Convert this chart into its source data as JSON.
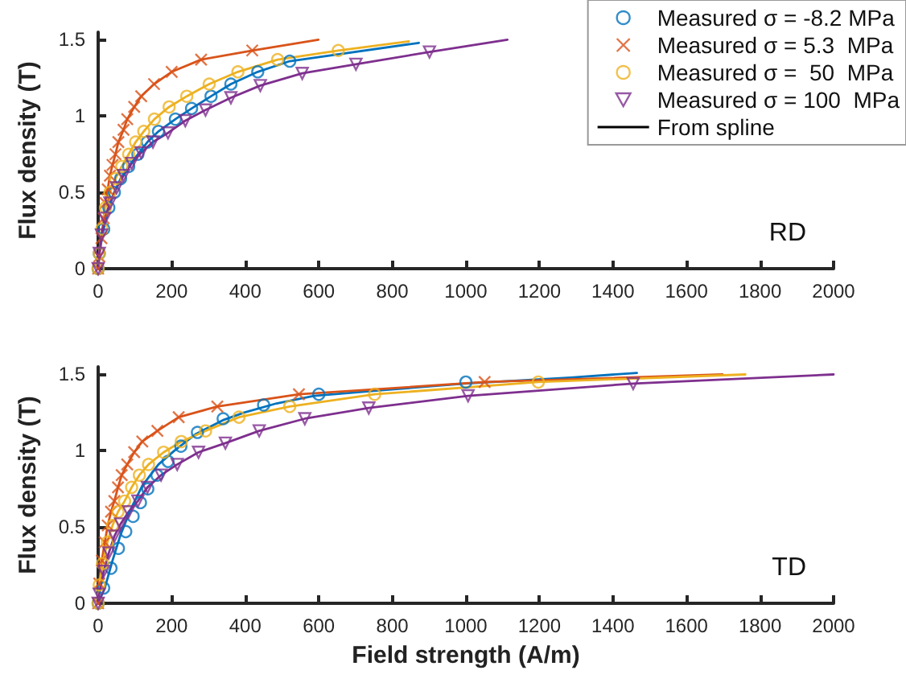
{
  "chart_data": [
    {
      "type": "scatter",
      "ylabel": "Flux density (T)",
      "xlim": [
        0,
        2000
      ],
      "xticks": [
        0,
        200,
        400,
        600,
        800,
        1000,
        1200,
        1400,
        1600,
        1800,
        2000
      ],
      "ylim": [
        0,
        1.55
      ],
      "yticks": [
        0,
        0.5,
        1,
        1.5
      ],
      "grid": false,
      "legend": "top right",
      "annotations": [
        "RD"
      ],
      "series": [
        {
          "name": "Measured σ = -8.2 MPa",
          "color": "#0072bd",
          "marker": "circle",
          "x": [
            0,
            3,
            15,
            29,
            44,
            61,
            83,
            108,
            134,
            164,
            210,
            254,
            307,
            361,
            434,
            521
          ],
          "values": [
            0,
            0.1,
            0.26,
            0.4,
            0.5,
            0.59,
            0.67,
            0.75,
            0.83,
            0.9,
            0.98,
            1.05,
            1.13,
            1.21,
            1.29,
            1.36
          ]
        },
        {
          "name": "Measured σ = 5.3  MPa",
          "color": "#d95319",
          "marker": "cross",
          "x": [
            0,
            3,
            9,
            15,
            20,
            26,
            32,
            39,
            47,
            55,
            69,
            79,
            98,
            117,
            152,
            200,
            280,
            419
          ],
          "values": [
            0,
            0.08,
            0.2,
            0.33,
            0.43,
            0.52,
            0.61,
            0.68,
            0.75,
            0.83,
            0.91,
            0.98,
            1.06,
            1.13,
            1.21,
            1.29,
            1.37,
            1.43
          ]
        },
        {
          "name": "Measured σ =  50  MPa",
          "color": "#edb120",
          "marker": "circle",
          "x": [
            0,
            3,
            10,
            20,
            32,
            47,
            64,
            83,
            102,
            124,
            153,
            193,
            241,
            302,
            380,
            488,
            653
          ],
          "values": [
            0,
            0.1,
            0.26,
            0.4,
            0.5,
            0.59,
            0.67,
            0.75,
            0.83,
            0.9,
            0.98,
            1.06,
            1.13,
            1.21,
            1.29,
            1.37,
            1.43
          ]
        },
        {
          "name": "Measured σ = 100  MPa",
          "color": "#7e2f8e",
          "marker": "triangle",
          "x": [
            0,
            3,
            9,
            18,
            32,
            50,
            69,
            91,
            117,
            149,
            190,
            237,
            292,
            361,
            441,
            555,
            701,
            901
          ],
          "values": [
            0,
            0.1,
            0.22,
            0.33,
            0.43,
            0.53,
            0.61,
            0.69,
            0.76,
            0.83,
            0.89,
            0.97,
            1.04,
            1.12,
            1.2,
            1.28,
            1.34,
            1.42
          ]
        },
        {
          "type": "line",
          "color": "#0072bd",
          "x": [
            0,
            3,
            15,
            29,
            44,
            61,
            83,
            108,
            134,
            164,
            210,
            254,
            307,
            361,
            434,
            521,
            872
          ],
          "values": [
            0,
            0.1,
            0.26,
            0.4,
            0.5,
            0.59,
            0.67,
            0.75,
            0.83,
            0.9,
            0.98,
            1.05,
            1.13,
            1.21,
            1.29,
            1.36,
            1.48
          ]
        },
        {
          "type": "line",
          "color": "#d95319",
          "x": [
            0,
            3,
            9,
            15,
            20,
            26,
            32,
            39,
            47,
            55,
            69,
            79,
            98,
            117,
            152,
            200,
            280,
            419,
            599
          ],
          "values": [
            0,
            0.08,
            0.2,
            0.33,
            0.43,
            0.52,
            0.61,
            0.68,
            0.75,
            0.83,
            0.91,
            0.98,
            1.06,
            1.13,
            1.21,
            1.29,
            1.37,
            1.43,
            1.5
          ]
        },
        {
          "type": "line",
          "color": "#edb120",
          "x": [
            0,
            3,
            10,
            20,
            32,
            47,
            64,
            83,
            102,
            124,
            153,
            193,
            241,
            302,
            380,
            488,
            653,
            845
          ],
          "values": [
            0,
            0.1,
            0.26,
            0.4,
            0.5,
            0.59,
            0.67,
            0.75,
            0.83,
            0.9,
            0.98,
            1.06,
            1.13,
            1.21,
            1.29,
            1.37,
            1.43,
            1.49
          ]
        },
        {
          "type": "line",
          "color": "#7e2f8e",
          "x": [
            0,
            3,
            9,
            18,
            32,
            50,
            69,
            91,
            117,
            149,
            190,
            237,
            292,
            361,
            441,
            555,
            701,
            901,
            1113
          ],
          "values": [
            0,
            0.1,
            0.22,
            0.33,
            0.43,
            0.53,
            0.61,
            0.69,
            0.76,
            0.83,
            0.89,
            0.97,
            1.04,
            1.12,
            1.2,
            1.28,
            1.34,
            1.42,
            1.5
          ]
        },
        {
          "type": "line",
          "name": "From spline",
          "color": "#000000"
        }
      ]
    },
    {
      "type": "scatter",
      "xlabel": "Field strength (A/m)",
      "ylabel": "Flux density (T)",
      "xlim": [
        0,
        2000
      ],
      "xticks": [
        0,
        200,
        400,
        600,
        800,
        1000,
        1200,
        1400,
        1600,
        1800,
        2000
      ],
      "ylim": [
        0,
        1.55
      ],
      "yticks": [
        0,
        0.5,
        1,
        1.5
      ],
      "grid": false,
      "annotations": [
        "TD"
      ],
      "series": [
        {
          "color": "#0072bd",
          "marker": "circle",
          "x": [
            0,
            15,
            35,
            55,
            75,
            95,
            115,
            135,
            160,
            190,
            225,
            270,
            340,
            450,
            600,
            1000
          ],
          "values": [
            0,
            0.1,
            0.23,
            0.36,
            0.47,
            0.57,
            0.66,
            0.75,
            0.84,
            0.93,
            1.03,
            1.12,
            1.21,
            1.3,
            1.37,
            1.45
          ]
        },
        {
          "color": "#d95319",
          "marker": "cross",
          "x": [
            0,
            3,
            10,
            18,
            26,
            35,
            44,
            54,
            64,
            79,
            98,
            120,
            161,
            219,
            324,
            546,
            1051
          ],
          "values": [
            0,
            0.13,
            0.28,
            0.4,
            0.51,
            0.6,
            0.67,
            0.76,
            0.84,
            0.91,
            0.99,
            1.06,
            1.13,
            1.22,
            1.29,
            1.37,
            1.45
          ]
        },
        {
          "color": "#edb120",
          "marker": "circle",
          "x": [
            0,
            3,
            12,
            25,
            39,
            54,
            72,
            91,
            112,
            137,
            178,
            226,
            292,
            383,
            521,
            752,
            1197
          ],
          "values": [
            0,
            0.12,
            0.26,
            0.4,
            0.51,
            0.6,
            0.67,
            0.76,
            0.84,
            0.91,
            0.99,
            1.06,
            1.13,
            1.22,
            1.29,
            1.37,
            1.45
          ]
        },
        {
          "color": "#7e2f8e",
          "marker": "triangle",
          "x": [
            0,
            3,
            15,
            29,
            44,
            61,
            83,
            108,
            134,
            171,
            215,
            273,
            346,
            438,
            562,
            736,
            1006,
            1455
          ],
          "values": [
            0,
            0.06,
            0.21,
            0.33,
            0.44,
            0.52,
            0.6,
            0.67,
            0.76,
            0.84,
            0.91,
            0.99,
            1.05,
            1.13,
            1.21,
            1.28,
            1.36,
            1.44
          ]
        },
        {
          "type": "line",
          "color": "#0072bd",
          "x": [
            0,
            18,
            39,
            61,
            91,
            120,
            164,
            207,
            266,
            339,
            397,
            485,
            587,
            791,
            996,
            1285,
            1465
          ],
          "values": [
            0,
            0.1,
            0.28,
            0.45,
            0.63,
            0.77,
            0.91,
            1,
            1.11,
            1.2,
            1.25,
            1.31,
            1.36,
            1.4,
            1.44,
            1.48,
            1.51
          ]
        },
        {
          "type": "line",
          "color": "#d95319",
          "x": [
            0,
            3,
            10,
            18,
            26,
            35,
            44,
            54,
            64,
            79,
            98,
            120,
            161,
            219,
            324,
            546,
            1051,
            1698
          ],
          "values": [
            0,
            0.13,
            0.28,
            0.4,
            0.51,
            0.6,
            0.67,
            0.76,
            0.84,
            0.91,
            0.99,
            1.06,
            1.13,
            1.22,
            1.29,
            1.37,
            1.45,
            1.5
          ]
        },
        {
          "type": "line",
          "color": "#edb120",
          "x": [
            0,
            3,
            12,
            25,
            39,
            54,
            72,
            91,
            112,
            137,
            178,
            226,
            292,
            383,
            521,
            752,
            1197,
            1760
          ],
          "values": [
            0,
            0.12,
            0.26,
            0.4,
            0.51,
            0.6,
            0.67,
            0.76,
            0.84,
            0.91,
            0.99,
            1.06,
            1.13,
            1.22,
            1.29,
            1.37,
            1.45,
            1.5
          ]
        },
        {
          "type": "line",
          "color": "#7e2f8e",
          "x": [
            0,
            3,
            15,
            29,
            44,
            61,
            83,
            108,
            134,
            171,
            215,
            273,
            346,
            438,
            562,
            736,
            1006,
            1455,
            2000
          ],
          "values": [
            0,
            0.06,
            0.21,
            0.33,
            0.44,
            0.52,
            0.6,
            0.67,
            0.76,
            0.84,
            0.91,
            0.99,
            1.05,
            1.13,
            1.21,
            1.28,
            1.36,
            1.44,
            1.5
          ]
        }
      ]
    }
  ]
}
